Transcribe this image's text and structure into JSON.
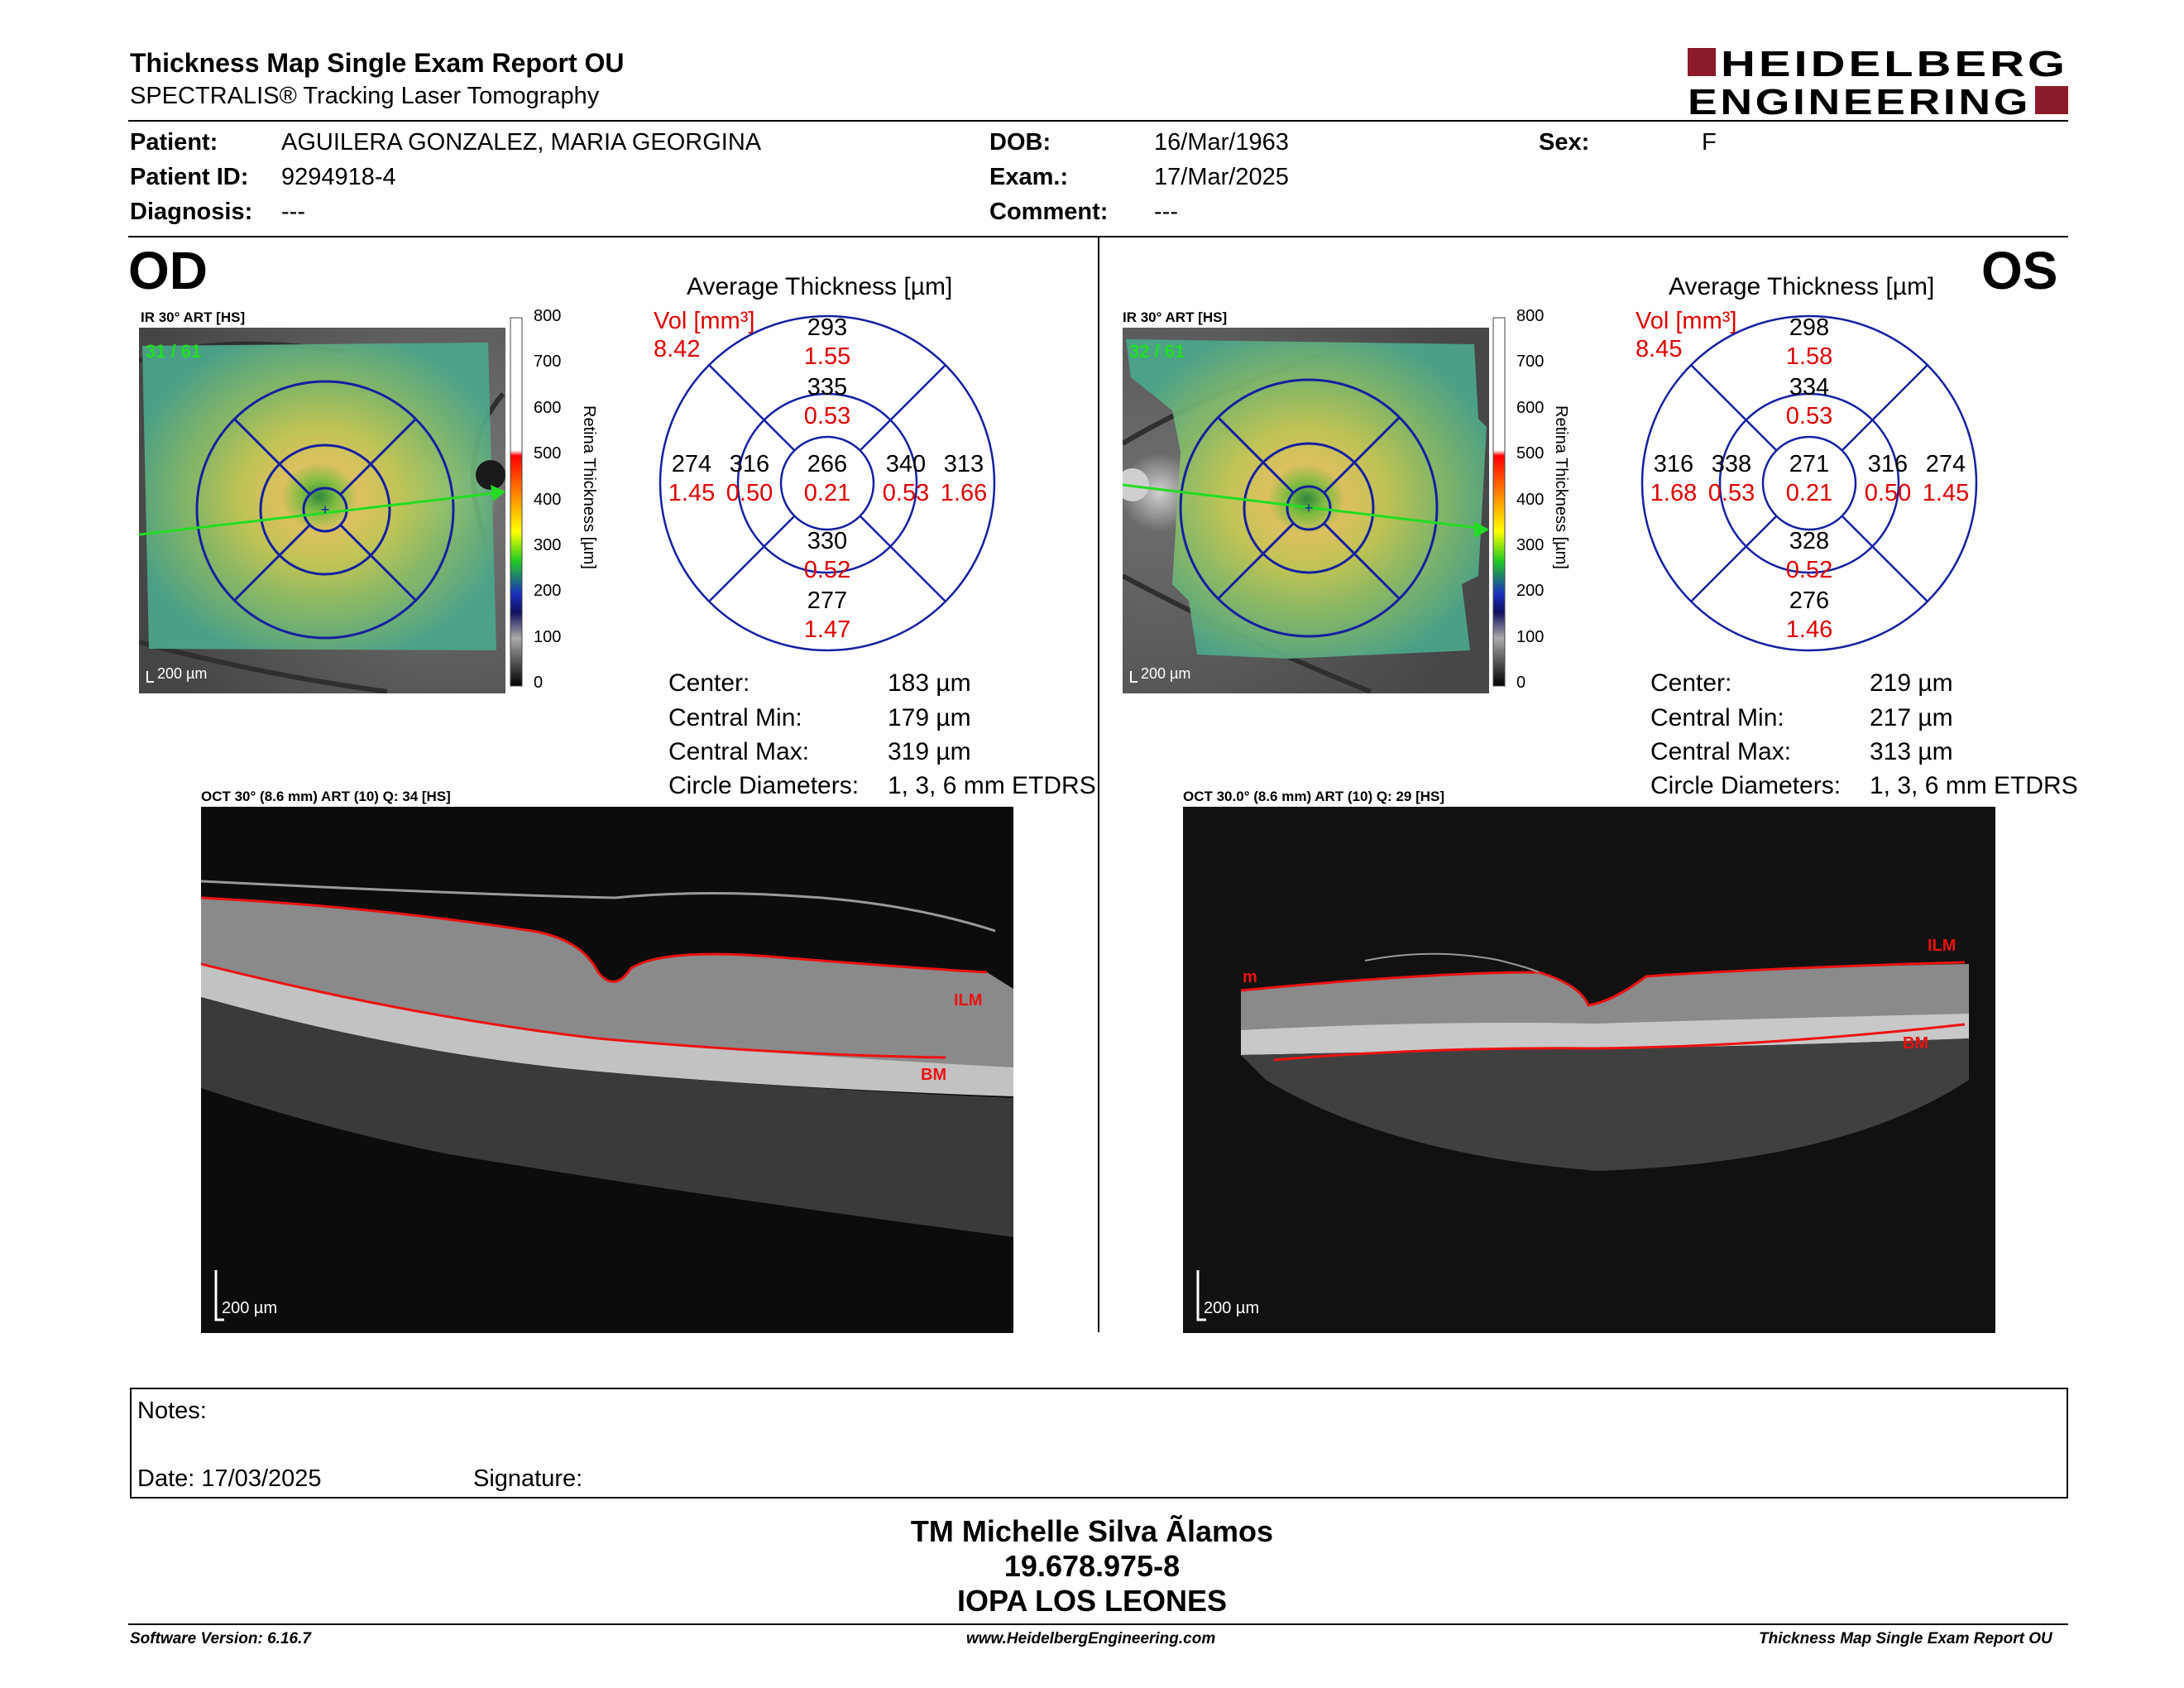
{
  "header": {
    "title": "Thickness Map Single Exam Report OU",
    "subtitle": "SPECTRALIS® Tracking Laser Tomography",
    "logo_line1": "HEIDELBERG",
    "logo_line2": "ENGINEERING",
    "brand_color": "#8b1a2b"
  },
  "patient": {
    "patient_label": "Patient:",
    "patient_value": "AGUILERA GONZALEZ, MARIA GEORGINA",
    "patient_id_label": "Patient ID:",
    "patient_id_value": "9294918-4",
    "diagnosis_label": "Diagnosis:",
    "diagnosis_value": "---",
    "dob_label": "DOB:",
    "dob_value": "16/Mar/1963",
    "exam_label": "Exam.:",
    "exam_value": "17/Mar/2025",
    "comment_label": "Comment:",
    "comment_value": "---",
    "sex_label": "Sex:",
    "sex_value": "F"
  },
  "colorbar": {
    "label": "Retina Thickness [µm]",
    "ticks": [
      "800",
      "700",
      "600",
      "500",
      "400",
      "300",
      "200",
      "100",
      "0"
    ]
  },
  "od": {
    "eye": "OD",
    "ir_label": "IR 30° ART [HS]",
    "frames": "31 / 61",
    "scale": "200 µm",
    "avg_title": "Average Thickness [µm]",
    "vol_label": "Vol [mm³]",
    "vol_value": "8.42",
    "etdrs": {
      "center": {
        "t": "266",
        "v": "0.21"
      },
      "inner_sup": {
        "t": "335",
        "v": "0.53"
      },
      "inner_inf": {
        "t": "330",
        "v": "0.52"
      },
      "inner_left": {
        "t": "316",
        "v": "0.50"
      },
      "inner_right": {
        "t": "340",
        "v": "0.53"
      },
      "outer_sup": {
        "t": "293",
        "v": "1.55"
      },
      "outer_inf": {
        "t": "277",
        "v": "1.47"
      },
      "outer_left": {
        "t": "274",
        "v": "1.45"
      },
      "outer_right": {
        "t": "313",
        "v": "1.66"
      }
    },
    "stats": [
      {
        "label": "Center:",
        "value": "183 µm"
      },
      {
        "label": "Central Min:",
        "value": "179 µm"
      },
      {
        "label": "Central Max:",
        "value": "319 µm"
      },
      {
        "label": "Circle Diameters:",
        "value": "1, 3, 6 mm ETDRS"
      }
    ],
    "oct_label": "OCT 30° (8.6 mm) ART (10) Q: 34 [HS]",
    "oct_scale": "200 µm",
    "ilm_label": "ILM",
    "bm_label": "BM"
  },
  "os": {
    "eye": "OS",
    "ir_label": "IR 30° ART [HS]",
    "frames": "32 / 61",
    "scale": "200 µm",
    "avg_title": "Average Thickness [µm]",
    "vol_label": "Vol [mm³]",
    "vol_value": "8.45",
    "etdrs": {
      "center": {
        "t": "271",
        "v": "0.21"
      },
      "inner_sup": {
        "t": "334",
        "v": "0.53"
      },
      "inner_inf": {
        "t": "328",
        "v": "0.52"
      },
      "inner_left": {
        "t": "338",
        "v": "0.53"
      },
      "inner_right": {
        "t": "316",
        "v": "0.50"
      },
      "outer_sup": {
        "t": "298",
        "v": "1.58"
      },
      "outer_inf": {
        "t": "276",
        "v": "1.46"
      },
      "outer_left": {
        "t": "316",
        "v": "1.68"
      },
      "outer_right": {
        "t": "274",
        "v": "1.45"
      }
    },
    "stats": [
      {
        "label": "Center:",
        "value": "219 µm"
      },
      {
        "label": "Central Min:",
        "value": "217 µm"
      },
      {
        "label": "Central Max:",
        "value": "313 µm"
      },
      {
        "label": "Circle Diameters:",
        "value": "1, 3, 6 mm ETDRS"
      }
    ],
    "oct_label": "OCT 30.0° (8.6 mm) ART (10) Q: 29 [HS]",
    "oct_scale": "200 µm",
    "ilm_label": "ILM",
    "bm_label": "BM",
    "m_label": "m"
  },
  "notes": {
    "notes_label": "Notes:",
    "date_label": "Date: 17/03/2025",
    "signature_label": "Signature:"
  },
  "signer": {
    "name": "TM Michelle Silva Ãlamos",
    "id": "19.678.975-8",
    "org": "IOPA LOS LEONES"
  },
  "footer": {
    "software": "Software Version: 6.16.7",
    "website": "www.HeidelbergEngineering.com",
    "report": "Thickness Map Single Exam Report OU"
  }
}
